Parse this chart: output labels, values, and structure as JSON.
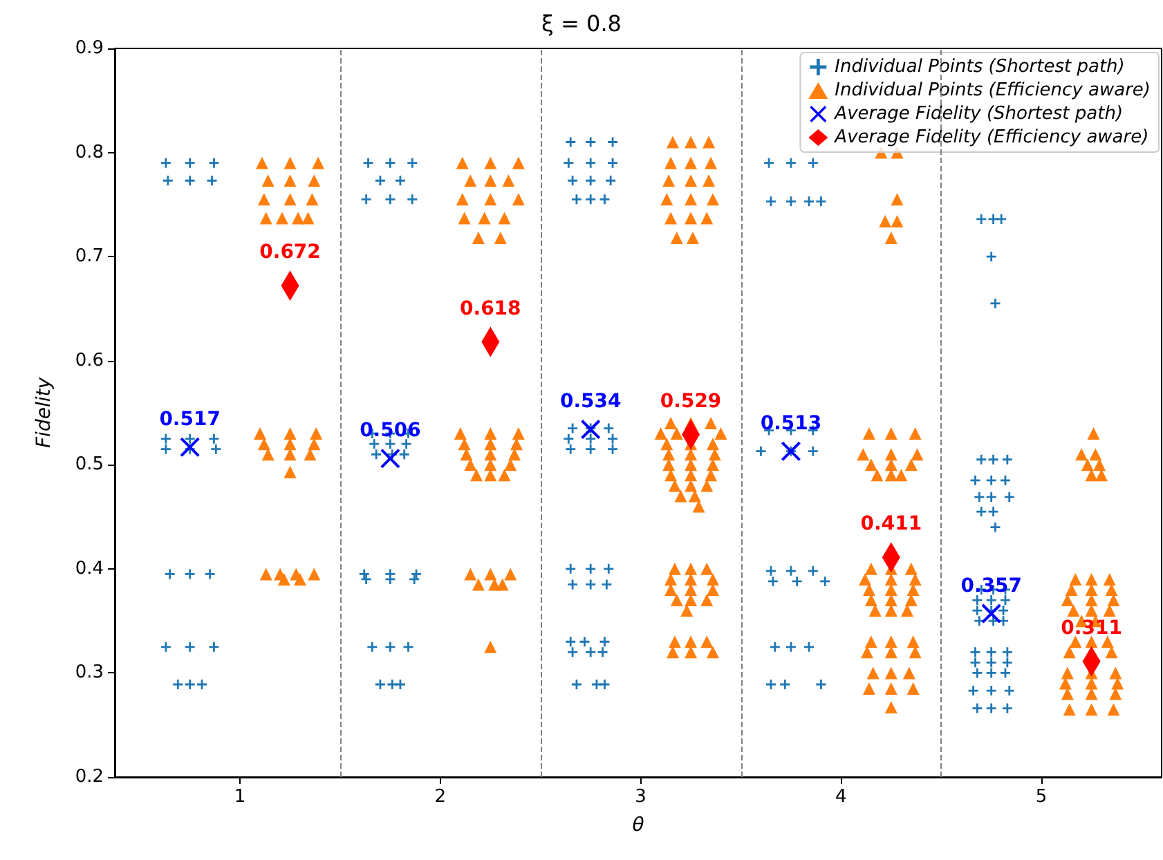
{
  "chart_data": {
    "type": "scatter",
    "title": "ξ = 0.8",
    "xlabel": "θ",
    "ylabel": "Fidelity",
    "xlim": [
      0.375,
      5.6
    ],
    "xticks": [
      1,
      2,
      3,
      4,
      5
    ],
    "ylim": [
      0.2,
      0.9
    ],
    "yticks": [
      0.2,
      0.3,
      0.4,
      0.5,
      0.6,
      0.7,
      0.8,
      0.9
    ],
    "grid": false,
    "legend": "top right",
    "ref_lines": [
      {
        "axis": "x",
        "value": 1.5,
        "color": "#808080",
        "line_style": "dashed"
      },
      {
        "axis": "x",
        "value": 2.5,
        "color": "#808080",
        "line_style": "dashed"
      },
      {
        "axis": "x",
        "value": 3.5,
        "color": "#808080",
        "line_style": "dashed"
      },
      {
        "axis": "x",
        "value": 4.5,
        "color": "#808080",
        "line_style": "dashed"
      }
    ],
    "series": [
      {
        "name": "Individual Points (Shortest path)",
        "color": "#1f77b4",
        "marker": "plus",
        "x": [
          0.63,
          0.75,
          0.87,
          0.64,
          0.75,
          0.86,
          0.63,
          0.75,
          0.87,
          0.63,
          0.75,
          0.88,
          0.65,
          0.75,
          0.85,
          0.63,
          0.75,
          0.87,
          0.69,
          0.75,
          0.81,
          1.64,
          1.75,
          1.86,
          1.7,
          1.8,
          1.63,
          1.75,
          1.86,
          1.66,
          1.75,
          1.84,
          1.67,
          1.75,
          1.83,
          1.68,
          1.76,
          1.82,
          1.62,
          1.75,
          1.88,
          1.63,
          1.75,
          1.87,
          1.66,
          1.75,
          1.84,
          1.7,
          1.76,
          1.8,
          2.65,
          2.75,
          2.86,
          2.64,
          2.75,
          2.86,
          2.66,
          2.75,
          2.85,
          2.68,
          2.75,
          2.82,
          2.66,
          2.75,
          2.84,
          2.64,
          2.75,
          2.86,
          2.65,
          2.75,
          2.86,
          2.65,
          2.75,
          2.84,
          2.66,
          2.75,
          2.83,
          2.65,
          2.72,
          2.82,
          2.66,
          2.75,
          2.81,
          2.68,
          2.78,
          2.82,
          3.64,
          3.75,
          3.86,
          3.65,
          3.75,
          3.84,
          3.9,
          3.64,
          3.75,
          3.86,
          3.6,
          3.75,
          3.86,
          3.65,
          3.75,
          3.86,
          3.66,
          3.78,
          3.92,
          3.67,
          3.75,
          3.84,
          3.65,
          3.72,
          3.9,
          4.7,
          4.76,
          4.8,
          4.75,
          4.77,
          4.7,
          4.76,
          4.83,
          4.67,
          4.75,
          4.82,
          4.69,
          4.75,
          4.84,
          4.7,
          4.76,
          4.77,
          4.7,
          4.76,
          4.82,
          4.68,
          4.75,
          4.82,
          4.68,
          4.75,
          4.81,
          4.69,
          4.76,
          4.81,
          4.67,
          4.75,
          4.83,
          4.67,
          4.75,
          4.83,
          4.68,
          4.75,
          4.82,
          4.66,
          4.75,
          4.84,
          4.68,
          4.75,
          4.83
        ],
        "values": [
          0.79,
          0.79,
          0.79,
          0.773,
          0.773,
          0.773,
          0.525,
          0.525,
          0.525,
          0.515,
          0.515,
          0.515,
          0.395,
          0.395,
          0.395,
          0.325,
          0.325,
          0.325,
          0.289,
          0.289,
          0.289,
          0.79,
          0.79,
          0.79,
          0.773,
          0.773,
          0.755,
          0.755,
          0.755,
          0.53,
          0.53,
          0.53,
          0.52,
          0.52,
          0.52,
          0.51,
          0.51,
          0.51,
          0.395,
          0.395,
          0.395,
          0.39,
          0.39,
          0.39,
          0.325,
          0.325,
          0.325,
          0.289,
          0.289,
          0.289,
          0.81,
          0.81,
          0.81,
          0.79,
          0.79,
          0.79,
          0.773,
          0.773,
          0.773,
          0.755,
          0.755,
          0.755,
          0.535,
          0.535,
          0.535,
          0.525,
          0.525,
          0.525,
          0.515,
          0.515,
          0.515,
          0.4,
          0.4,
          0.4,
          0.385,
          0.385,
          0.385,
          0.33,
          0.33,
          0.33,
          0.32,
          0.32,
          0.32,
          0.289,
          0.289,
          0.289,
          0.79,
          0.79,
          0.79,
          0.753,
          0.753,
          0.753,
          0.753,
          0.533,
          0.533,
          0.533,
          0.513,
          0.513,
          0.513,
          0.398,
          0.398,
          0.398,
          0.388,
          0.388,
          0.388,
          0.325,
          0.325,
          0.325,
          0.289,
          0.289,
          0.289,
          0.736,
          0.736,
          0.736,
          0.7,
          0.655,
          0.505,
          0.505,
          0.505,
          0.485,
          0.485,
          0.485,
          0.469,
          0.469,
          0.469,
          0.455,
          0.455,
          0.44,
          0.38,
          0.38,
          0.38,
          0.37,
          0.37,
          0.37,
          0.36,
          0.36,
          0.36,
          0.35,
          0.35,
          0.35,
          0.32,
          0.32,
          0.32,
          0.31,
          0.31,
          0.31,
          0.3,
          0.3,
          0.3,
          0.283,
          0.283,
          0.283,
          0.266,
          0.266,
          0.266
        ]
      },
      {
        "name": "Individual Points (Efficiency aware)",
        "color": "#ff7f0e",
        "marker": "triangle",
        "x": [
          1.11,
          1.25,
          1.39,
          1.14,
          1.25,
          1.37,
          1.12,
          1.25,
          1.36,
          1.13,
          1.21,
          1.29,
          1.34,
          1.1,
          1.25,
          1.38,
          1.12,
          1.25,
          1.37,
          1.14,
          1.25,
          1.35,
          1.25,
          1.13,
          1.2,
          1.28,
          1.37,
          1.22,
          1.3,
          2.11,
          2.25,
          2.39,
          2.15,
          2.25,
          2.34,
          2.11,
          2.25,
          2.39,
          2.12,
          2.22,
          2.32,
          2.19,
          2.3,
          2.1,
          2.25,
          2.39,
          2.12,
          2.25,
          2.38,
          2.13,
          2.25,
          2.37,
          2.15,
          2.25,
          2.35,
          2.18,
          2.25,
          2.32,
          2.15,
          2.25,
          2.35,
          2.19,
          2.27,
          2.31,
          2.25,
          3.16,
          3.25,
          3.34,
          3.15,
          3.25,
          3.35,
          3.14,
          3.25,
          3.34,
          3.13,
          3.25,
          3.36,
          3.15,
          3.25,
          3.33,
          3.18,
          3.26,
          3.15,
          3.25,
          3.35,
          3.1,
          3.18,
          3.4,
          3.13,
          3.25,
          3.36,
          3.14,
          3.25,
          3.37,
          3.14,
          3.25,
          3.36,
          3.15,
          3.25,
          3.35,
          3.17,
          3.25,
          3.33,
          3.2,
          3.27,
          3.29,
          3.17,
          3.25,
          3.33,
          3.15,
          3.25,
          3.36,
          3.15,
          3.25,
          3.36,
          3.18,
          3.25,
          3.33,
          3.23,
          3.17,
          3.25,
          3.33,
          3.16,
          3.25,
          3.36,
          4.2,
          4.28,
          4.28,
          4.22,
          4.28,
          4.25,
          4.14,
          4.25,
          4.37,
          4.11,
          4.25,
          4.38,
          4.15,
          4.25,
          4.35,
          4.18,
          4.25,
          4.3,
          4.15,
          4.25,
          4.35,
          4.12,
          4.25,
          4.37,
          4.14,
          4.25,
          4.36,
          4.15,
          4.25,
          4.35,
          4.17,
          4.25,
          4.33,
          4.15,
          4.25,
          4.36,
          4.13,
          4.25,
          4.37,
          4.16,
          4.25,
          4.34,
          4.14,
          4.25,
          4.36,
          4.25,
          5.26,
          5.2,
          5.27,
          5.23,
          5.29,
          5.25,
          5.3,
          5.17,
          5.25,
          5.34,
          5.15,
          5.25,
          5.35,
          5.13,
          5.25,
          5.36,
          5.16,
          5.25,
          5.34,
          5.2,
          5.27,
          5.17,
          5.25,
          5.33,
          5.14,
          5.25,
          5.35,
          5.13,
          5.25,
          5.37,
          5.12,
          5.25,
          5.38,
          5.13,
          5.25,
          5.37,
          5.14,
          5.25,
          5.36
        ],
        "values": [
          0.79,
          0.79,
          0.79,
          0.773,
          0.773,
          0.773,
          0.755,
          0.755,
          0.755,
          0.737,
          0.737,
          0.737,
          0.737,
          0.53,
          0.53,
          0.53,
          0.52,
          0.52,
          0.52,
          0.51,
          0.51,
          0.51,
          0.493,
          0.395,
          0.395,
          0.395,
          0.395,
          0.39,
          0.39,
          0.79,
          0.79,
          0.79,
          0.773,
          0.773,
          0.773,
          0.755,
          0.755,
          0.755,
          0.737,
          0.737,
          0.737,
          0.718,
          0.718,
          0.53,
          0.53,
          0.53,
          0.52,
          0.52,
          0.52,
          0.51,
          0.51,
          0.51,
          0.5,
          0.5,
          0.5,
          0.49,
          0.49,
          0.49,
          0.395,
          0.395,
          0.395,
          0.385,
          0.385,
          0.385,
          0.325,
          0.81,
          0.81,
          0.81,
          0.79,
          0.79,
          0.79,
          0.773,
          0.773,
          0.773,
          0.755,
          0.755,
          0.755,
          0.737,
          0.737,
          0.737,
          0.718,
          0.718,
          0.54,
          0.54,
          0.54,
          0.53,
          0.53,
          0.53,
          0.52,
          0.52,
          0.52,
          0.51,
          0.51,
          0.51,
          0.5,
          0.5,
          0.5,
          0.49,
          0.49,
          0.49,
          0.48,
          0.48,
          0.48,
          0.47,
          0.47,
          0.46,
          0.4,
          0.4,
          0.4,
          0.39,
          0.39,
          0.39,
          0.38,
          0.38,
          0.38,
          0.37,
          0.37,
          0.37,
          0.36,
          0.33,
          0.33,
          0.33,
          0.32,
          0.32,
          0.32,
          0.8,
          0.8,
          0.755,
          0.734,
          0.734,
          0.718,
          0.53,
          0.53,
          0.53,
          0.51,
          0.51,
          0.51,
          0.5,
          0.5,
          0.5,
          0.49,
          0.49,
          0.49,
          0.4,
          0.4,
          0.4,
          0.39,
          0.39,
          0.39,
          0.38,
          0.38,
          0.38,
          0.37,
          0.37,
          0.37,
          0.36,
          0.36,
          0.36,
          0.33,
          0.33,
          0.33,
          0.32,
          0.32,
          0.32,
          0.3,
          0.3,
          0.3,
          0.285,
          0.285,
          0.285,
          0.267,
          0.53,
          0.51,
          0.51,
          0.5,
          0.5,
          0.49,
          0.49,
          0.39,
          0.39,
          0.39,
          0.38,
          0.38,
          0.38,
          0.37,
          0.37,
          0.37,
          0.36,
          0.36,
          0.36,
          0.35,
          0.35,
          0.33,
          0.33,
          0.33,
          0.32,
          0.32,
          0.32,
          0.3,
          0.3,
          0.3,
          0.29,
          0.29,
          0.29,
          0.28,
          0.28,
          0.28,
          0.265,
          0.265,
          0.265
        ]
      },
      {
        "name": "Average Fidelity (Shortest path)",
        "color": "#0000ff",
        "marker": "cross",
        "x": [
          0.75,
          1.75,
          2.75,
          3.75,
          4.75
        ],
        "values": [
          0.517,
          0.506,
          0.534,
          0.513,
          0.357
        ],
        "value_labels": [
          "0.517",
          "0.506",
          "0.534",
          "0.513",
          "0.357"
        ]
      },
      {
        "name": "Average Fidelity (Efficiency aware)",
        "color": "#ff0000",
        "marker": "diamond",
        "x": [
          1.25,
          2.25,
          3.25,
          4.25,
          5.25
        ],
        "values": [
          0.672,
          0.618,
          0.529,
          0.411,
          0.311
        ],
        "value_labels": [
          "0.672",
          "0.618",
          "0.529",
          "0.411",
          "0.311"
        ]
      }
    ]
  }
}
